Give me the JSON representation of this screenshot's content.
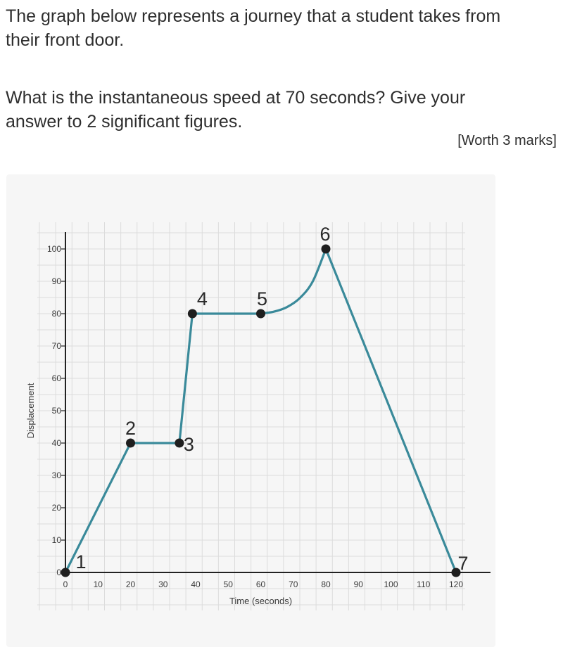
{
  "question": {
    "line1": "The graph below represents a journey that a student takes from",
    "line2": "their front door.",
    "line3": "What is the instantaneous speed at 70 seconds? Give your",
    "line4": "answer to 2 significant figures.",
    "marks": "[Worth 3 marks]"
  },
  "chart_data": {
    "type": "line",
    "xlabel": "Time (seconds)",
    "ylabel": "Displacement",
    "xlim": [
      0,
      120
    ],
    "ylim": [
      0,
      100
    ],
    "xticks": [
      0,
      10,
      20,
      30,
      40,
      50,
      60,
      70,
      80,
      90,
      100,
      110,
      120
    ],
    "yticks": [
      0,
      10,
      20,
      30,
      40,
      50,
      60,
      70,
      80,
      90,
      100
    ],
    "grid": true,
    "line_color": "#3a8a9a",
    "point_color": "#1f1f1f",
    "points": [
      {
        "label": "1",
        "x": 0,
        "y": 0
      },
      {
        "label": "2",
        "x": 20,
        "y": 40
      },
      {
        "label": "3",
        "x": 35,
        "y": 40
      },
      {
        "label": "4",
        "x": 39,
        "y": 80
      },
      {
        "label": "5",
        "x": 60,
        "y": 80
      },
      {
        "label": "6",
        "x": 80,
        "y": 100
      },
      {
        "label": "7",
        "x": 120,
        "y": 0
      }
    ],
    "curve_segment": {
      "from": "5",
      "to": "6",
      "samples": [
        {
          "x": 60,
          "y": 80
        },
        {
          "x": 64,
          "y": 80.6
        },
        {
          "x": 68,
          "y": 82
        },
        {
          "x": 72,
          "y": 84.8
        },
        {
          "x": 76,
          "y": 90
        },
        {
          "x": 80,
          "y": 100
        }
      ]
    }
  }
}
